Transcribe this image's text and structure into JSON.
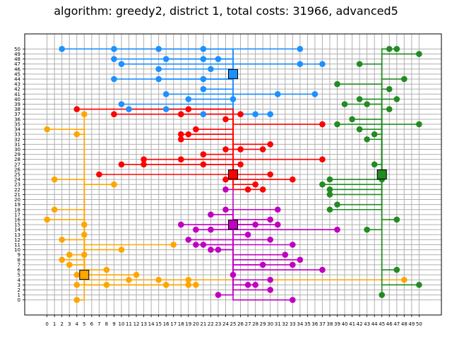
{
  "chart_data": {
    "type": "scatter",
    "title": "algorithm: greedy2, district 1, total costs: 31966, advanced5",
    "xlabel": "",
    "ylabel": "",
    "xlim": [
      -3,
      53
    ],
    "ylim": [
      -3,
      53
    ],
    "xticks": [
      0,
      1,
      2,
      3,
      4,
      5,
      6,
      7,
      8,
      9,
      10,
      11,
      12,
      13,
      14,
      15,
      16,
      17,
      18,
      19,
      20,
      21,
      22,
      23,
      24,
      25,
      26,
      27,
      28,
      29,
      30,
      31,
      32,
      33,
      34,
      35,
      36,
      37,
      38,
      39,
      40,
      41,
      42,
      43,
      44,
      45,
      46,
      47,
      48,
      49,
      50
    ],
    "yticks": [
      0,
      1,
      2,
      3,
      4,
      5,
      6,
      7,
      8,
      9,
      10,
      11,
      12,
      13,
      14,
      15,
      16,
      17,
      18,
      19,
      20,
      21,
      22,
      23,
      24,
      25,
      26,
      27,
      28,
      29,
      30,
      31,
      32,
      33,
      34,
      35,
      36,
      37,
      38,
      39,
      40,
      41,
      42,
      43,
      44,
      45,
      46,
      47,
      48,
      49,
      50
    ],
    "grid": true,
    "series": [
      {
        "color": "#1e90ff",
        "battery": [
          25,
          45
        ],
        "houses": [
          [
            2,
            50
          ],
          [
            9,
            50
          ],
          [
            15,
            50
          ],
          [
            21,
            50
          ],
          [
            34,
            50
          ],
          [
            9,
            48
          ],
          [
            16,
            48
          ],
          [
            21,
            48
          ],
          [
            23,
            48
          ],
          [
            10,
            47
          ],
          [
            34,
            47
          ],
          [
            37,
            47
          ],
          [
            15,
            46
          ],
          [
            22,
            46
          ],
          [
            9,
            44
          ],
          [
            15,
            44
          ],
          [
            21,
            44
          ],
          [
            21,
            42
          ],
          [
            16,
            41
          ],
          [
            31,
            41
          ],
          [
            36,
            41
          ],
          [
            19,
            40
          ],
          [
            25,
            40
          ],
          [
            10,
            39
          ],
          [
            11,
            38
          ],
          [
            16,
            38
          ],
          [
            21,
            37
          ],
          [
            28,
            37
          ],
          [
            30,
            37
          ]
        ]
      },
      {
        "color": "#ff0000",
        "battery": [
          25,
          25
        ],
        "houses": [
          [
            4,
            38
          ],
          [
            9,
            37
          ],
          [
            18,
            37
          ],
          [
            19,
            38
          ],
          [
            26,
            37
          ],
          [
            24,
            36
          ],
          [
            37,
            35
          ],
          [
            20,
            34
          ],
          [
            18,
            33
          ],
          [
            19,
            33
          ],
          [
            18,
            32
          ],
          [
            30,
            31
          ],
          [
            21,
            29
          ],
          [
            24,
            30
          ],
          [
            26,
            30
          ],
          [
            29,
            30
          ],
          [
            13,
            28
          ],
          [
            18,
            28
          ],
          [
            37,
            28
          ],
          [
            10,
            27
          ],
          [
            13,
            27
          ],
          [
            21,
            27
          ],
          [
            26,
            27
          ],
          [
            7,
            25
          ],
          [
            30,
            25
          ],
          [
            24,
            24
          ],
          [
            33,
            24
          ],
          [
            27,
            22
          ],
          [
            28,
            23
          ],
          [
            29,
            22
          ]
        ]
      },
      {
        "color": "#ffa500",
        "battery": [
          5,
          5
        ],
        "houses": [
          [
            5,
            37
          ],
          [
            0,
            34
          ],
          [
            4,
            33
          ],
          [
            1,
            24
          ],
          [
            9,
            23
          ],
          [
            1,
            18
          ],
          [
            0,
            16
          ],
          [
            5,
            15
          ],
          [
            5,
            13
          ],
          [
            2,
            12
          ],
          [
            17,
            11
          ],
          [
            10,
            10
          ],
          [
            5,
            9
          ],
          [
            3,
            9
          ],
          [
            2,
            8
          ],
          [
            3,
            7
          ],
          [
            8,
            6
          ],
          [
            4,
            5
          ],
          [
            12,
            5
          ],
          [
            11,
            4
          ],
          [
            15,
            4
          ],
          [
            19,
            4
          ],
          [
            48,
            4
          ],
          [
            4,
            3
          ],
          [
            8,
            3
          ],
          [
            16,
            3
          ],
          [
            19,
            3
          ],
          [
            20,
            3
          ],
          [
            4,
            0
          ]
        ]
      },
      {
        "color": "#c000c0",
        "battery": [
          25,
          15
        ],
        "houses": [
          [
            24,
            22
          ],
          [
            24,
            18
          ],
          [
            31,
            18
          ],
          [
            22,
            17
          ],
          [
            30,
            16
          ],
          [
            18,
            15
          ],
          [
            28,
            15
          ],
          [
            31,
            15
          ],
          [
            20,
            14
          ],
          [
            22,
            14
          ],
          [
            39,
            14
          ],
          [
            27,
            13
          ],
          [
            19,
            12
          ],
          [
            30,
            12
          ],
          [
            20,
            11
          ],
          [
            21,
            11
          ],
          [
            33,
            11
          ],
          [
            22,
            10
          ],
          [
            23,
            10
          ],
          [
            32,
            9
          ],
          [
            34,
            8
          ],
          [
            29,
            7
          ],
          [
            33,
            7
          ],
          [
            37,
            6
          ],
          [
            25,
            5
          ],
          [
            30,
            4
          ],
          [
            27,
            3
          ],
          [
            28,
            3
          ],
          [
            30,
            2
          ],
          [
            23,
            1
          ],
          [
            33,
            0
          ]
        ]
      },
      {
        "color": "#228b22",
        "battery": [
          45,
          25
        ],
        "houses": [
          [
            46,
            50
          ],
          [
            47,
            50
          ],
          [
            50,
            49
          ],
          [
            42,
            47
          ],
          [
            48,
            44
          ],
          [
            39,
            43
          ],
          [
            46,
            42
          ],
          [
            40,
            39
          ],
          [
            42,
            40
          ],
          [
            43,
            39
          ],
          [
            46,
            38
          ],
          [
            47,
            40
          ],
          [
            41,
            36
          ],
          [
            39,
            35
          ],
          [
            50,
            35
          ],
          [
            42,
            34
          ],
          [
            44,
            33
          ],
          [
            43,
            32
          ],
          [
            44,
            27
          ],
          [
            45,
            24
          ],
          [
            38,
            24
          ],
          [
            37,
            23
          ],
          [
            38,
            22
          ],
          [
            38,
            21
          ],
          [
            39,
            19
          ],
          [
            38,
            18
          ],
          [
            47,
            16
          ],
          [
            43,
            14
          ],
          [
            47,
            6
          ],
          [
            50,
            3
          ],
          [
            45,
            1
          ]
        ]
      }
    ]
  }
}
